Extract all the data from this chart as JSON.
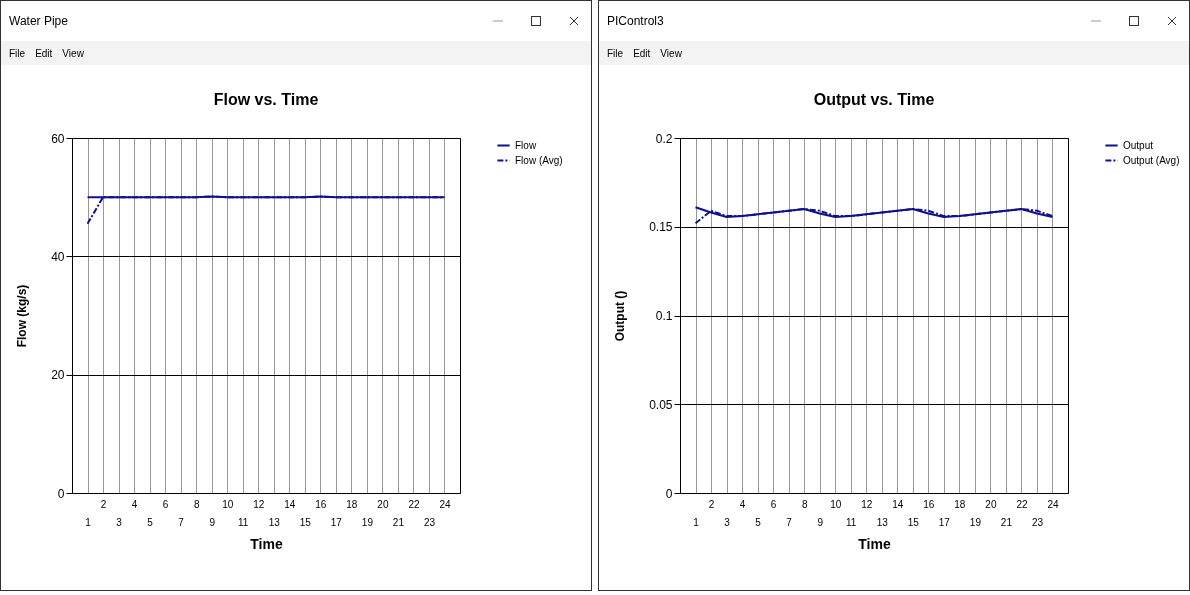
{
  "chart_data": [
    {
      "type": "line",
      "title": "Flow vs. Time",
      "xlabel": "Time",
      "ylabel": "Flow (kg/s)",
      "annotations": [
        "Water Pipe",
        "File",
        "Edit",
        "View"
      ],
      "categories": [
        "1",
        "2",
        "3",
        "4",
        "5",
        "6",
        "7",
        "8",
        "9",
        "10",
        "11",
        "12",
        "13",
        "14",
        "15",
        "16",
        "17",
        "18",
        "19",
        "20",
        "21",
        "22",
        "23",
        "24"
      ],
      "series": [
        {
          "name": "Flow",
          "color": "#10108c",
          "line_style": "solid",
          "values": [
            50,
            50,
            50,
            50,
            50,
            50,
            50,
            50,
            50.1,
            50,
            50,
            50,
            50,
            50,
            50,
            50.1,
            50,
            50,
            50,
            50,
            50,
            50,
            50,
            50
          ]
        },
        {
          "name": "Flow (Avg)",
          "color": "#10108c",
          "line_style": "dashed",
          "values": [
            45.5,
            50,
            50,
            50,
            50,
            50,
            50,
            50,
            50.1,
            50,
            50,
            50,
            50,
            50,
            50,
            50.1,
            50,
            50,
            50,
            50,
            50,
            50,
            50,
            50
          ]
        }
      ],
      "ylim": [
        0,
        60
      ],
      "yticks": [
        0,
        20,
        40,
        60
      ],
      "grid": true,
      "legend": "right",
      "marker": "none"
    },
    {
      "type": "line",
      "title": "Output vs. Time",
      "xlabel": "Time",
      "ylabel": "Output ()",
      "annotations": [
        "PIControl3",
        "File",
        "Edit",
        "View"
      ],
      "categories": [
        "1",
        "2",
        "3",
        "4",
        "5",
        "6",
        "7",
        "8",
        "9",
        "10",
        "11",
        "12",
        "13",
        "14",
        "15",
        "16",
        "17",
        "18",
        "19",
        "20",
        "21",
        "22",
        "23",
        "24"
      ],
      "series": [
        {
          "name": "Output",
          "color": "#10108c",
          "line_style": "solid",
          "values": [
            0.161,
            0.158,
            0.1555,
            0.156,
            0.157,
            0.158,
            0.159,
            0.16,
            0.1575,
            0.1555,
            0.156,
            0.157,
            0.158,
            0.159,
            0.16,
            0.1575,
            0.1555,
            0.156,
            0.157,
            0.158,
            0.159,
            0.16,
            0.1575,
            0.1555
          ]
        },
        {
          "name": "Output (Avg)",
          "color": "#10108c",
          "line_style": "dashed",
          "values": [
            0.152,
            0.159,
            0.156,
            0.156,
            0.157,
            0.158,
            0.159,
            0.16,
            0.159,
            0.156,
            0.156,
            0.157,
            0.158,
            0.159,
            0.16,
            0.159,
            0.156,
            0.156,
            0.157,
            0.158,
            0.159,
            0.16,
            0.159,
            0.156
          ]
        }
      ],
      "ylim": [
        0,
        0.2
      ],
      "yticks": [
        0,
        0.05,
        0.1,
        0.15,
        0.2
      ],
      "grid": true,
      "legend": "right",
      "marker": "none"
    }
  ]
}
